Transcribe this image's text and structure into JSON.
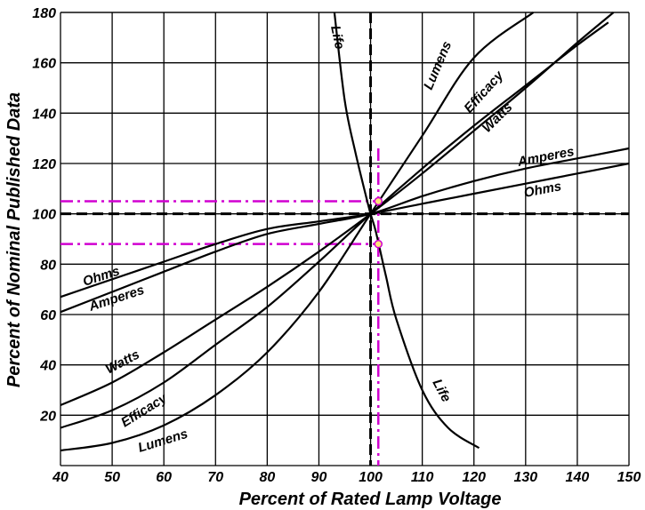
{
  "chart_data": {
    "type": "line",
    "title": "",
    "xlabel": "Percent of Rated Lamp Voltage",
    "ylabel": "Percent of Nominal Published Data",
    "xlim": [
      40,
      150
    ],
    "ylim": [
      0,
      180
    ],
    "x_ticks": [
      40,
      50,
      60,
      70,
      80,
      90,
      100,
      110,
      120,
      130,
      140,
      150
    ],
    "y_ticks": [
      20,
      40,
      60,
      80,
      100,
      120,
      140,
      160,
      180
    ],
    "grid": true,
    "series": [
      {
        "name": "Lumens",
        "x": [
          40,
          50,
          60,
          70,
          80,
          90,
          100,
          110,
          120,
          131.5
        ],
        "y": [
          6,
          9,
          16,
          28,
          45,
          69,
          100,
          131,
          162,
          180
        ]
      },
      {
        "name": "Efficacy",
        "x": [
          40,
          50,
          60,
          70,
          80,
          90,
          100,
          110,
          120,
          130,
          140,
          146
        ],
        "y": [
          15,
          22,
          33,
          48,
          63,
          81,
          100,
          118,
          135,
          151,
          167,
          176
        ]
      },
      {
        "name": "Watts",
        "x": [
          40,
          50,
          60,
          70,
          80,
          90,
          100,
          110,
          120,
          130,
          140,
          147
        ],
        "y": [
          24,
          33,
          45,
          58,
          71,
          85,
          100,
          116,
          133,
          150,
          168,
          180
        ]
      },
      {
        "name": "Amperes",
        "x": [
          40,
          50,
          60,
          70,
          80,
          90,
          100,
          110,
          120,
          130,
          140,
          150
        ],
        "y": [
          61,
          69,
          77,
          85,
          92,
          96,
          100,
          107,
          113,
          118,
          122,
          126
        ]
      },
      {
        "name": "Ohms",
        "x": [
          40,
          50,
          60,
          70,
          80,
          90,
          100,
          110,
          120,
          130,
          140,
          150
        ],
        "y": [
          67,
          74,
          81,
          88,
          94,
          97,
          100,
          104,
          108,
          112,
          116,
          120
        ]
      },
      {
        "name": "Life",
        "x": [
          93,
          95,
          97,
          99,
          100,
          101,
          103,
          105,
          110,
          115,
          121
        ],
        "y": [
          180,
          145,
          125,
          108,
          100,
          93,
          75,
          58,
          30,
          15,
          7
        ]
      }
    ],
    "reference_lines": {
      "x": 100,
      "y": 100
    },
    "highlight_points": [
      {
        "x": 101.5,
        "y": 105
      },
      {
        "x": 101.5,
        "y": 88
      }
    ],
    "highlight_color": "#d100d1",
    "line_color": "#000000",
    "grid_color": "#000000"
  }
}
